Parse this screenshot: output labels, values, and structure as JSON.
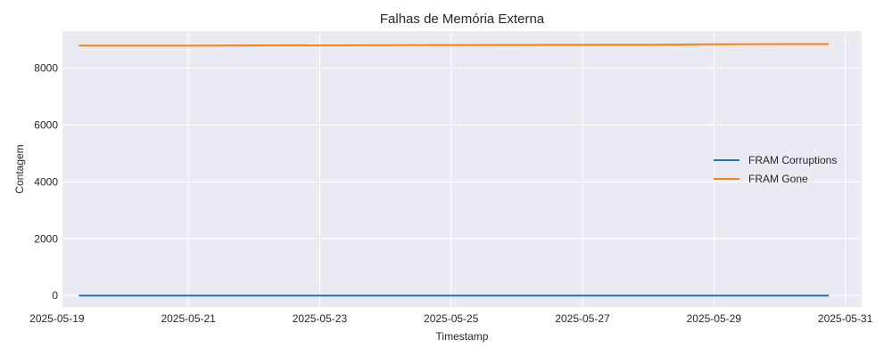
{
  "chart_data": {
    "type": "line",
    "title": "Falhas de Memória Externa",
    "xlabel": "Timestamp",
    "ylabel": "Contagem",
    "x_type": "date",
    "xlim": [
      "2025-05-19T02:00",
      "2025-05-31T06:00"
    ],
    "ylim": [
      -400,
      9300
    ],
    "x_ticks": [
      "2025-05-19",
      "2025-05-21",
      "2025-05-23",
      "2025-05-25",
      "2025-05-27",
      "2025-05-29",
      "2025-05-31"
    ],
    "y_ticks": [
      0,
      2000,
      4000,
      6000,
      8000
    ],
    "grid": true,
    "legend": "center-right",
    "series": [
      {
        "name": "FRAM Corruptions",
        "color": "#1f77b4",
        "points": [
          {
            "x": "2025-05-19T08:00",
            "y": 5
          },
          {
            "x": "2025-05-22T18:00",
            "y": 5
          },
          {
            "x": "2025-05-27T12:00",
            "y": 5
          },
          {
            "x": "2025-05-30T18:00",
            "y": 5
          }
        ]
      },
      {
        "name": "FRAM Gone",
        "color": "#ff7f0e",
        "points": [
          {
            "x": "2025-05-19T08:00",
            "y": 8790
          },
          {
            "x": "2025-05-21T00:00",
            "y": 8790
          },
          {
            "x": "2025-05-22T18:00",
            "y": 8810
          },
          {
            "x": "2025-05-22T19:00",
            "y": 8800
          },
          {
            "x": "2025-05-24T00:00",
            "y": 8805
          },
          {
            "x": "2025-05-26T00:00",
            "y": 8815
          },
          {
            "x": "2025-05-27T12:00",
            "y": 8825
          },
          {
            "x": "2025-05-28T00:00",
            "y": 8825
          },
          {
            "x": "2025-05-29T00:00",
            "y": 8840
          },
          {
            "x": "2025-05-30T18:00",
            "y": 8845
          }
        ]
      }
    ]
  }
}
